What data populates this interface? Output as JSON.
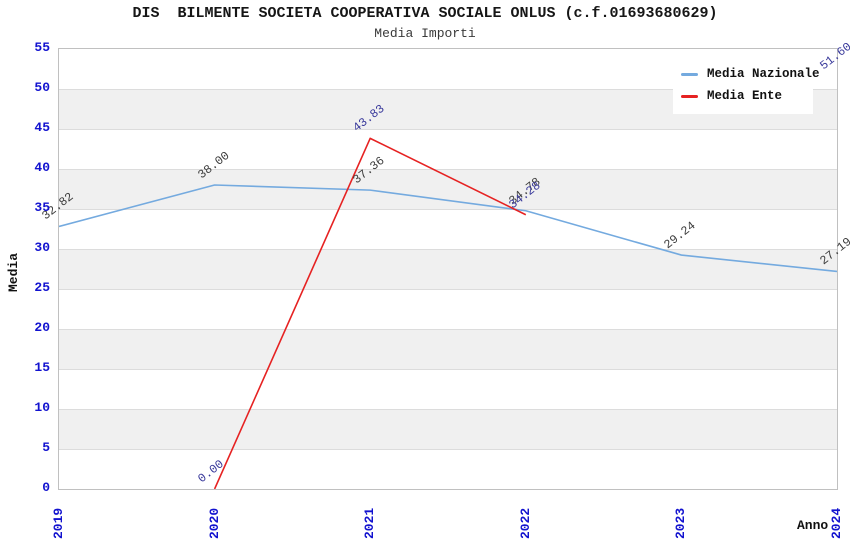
{
  "chart_data": {
    "type": "line",
    "title": "DIS  BILMENTE SOCIETA COOPERATIVA SOCIALE ONLUS (c.f.01693680629)",
    "subtitle": "Media Importi",
    "xlabel": "Anno",
    "ylabel": "Media",
    "categories": [
      "2019",
      "2020",
      "2021",
      "2022",
      "2023",
      "2024"
    ],
    "ylim": [
      0,
      55
    ],
    "ytick_step": 5,
    "yticks": [
      "0",
      "5",
      "10",
      "15",
      "20",
      "25",
      "30",
      "35",
      "40",
      "45",
      "50",
      "55"
    ],
    "grid": "horizontal gridlines every 5 units with alternating light-gray bands",
    "legend_position": "top-right",
    "colors": {
      "tick_label": "#1212cf",
      "grid_line": "#dcdcdc",
      "band_fill": "#f0f0f0",
      "plot_border": "#c0c0c0"
    },
    "series": [
      {
        "name": "Media Nazionale",
        "color": "#74aadf",
        "label_color": "#3c3c3c",
        "values": [
          32.82,
          38.0,
          37.36,
          34.78,
          29.24,
          27.19
        ],
        "point_labels": [
          "32.82",
          "38.00",
          "37.36",
          "34.78",
          "29.24",
          "27.19"
        ]
      },
      {
        "name": "Media Ente",
        "color": "#e62222",
        "label_color": "#39399b",
        "values": [
          null,
          0.0,
          43.83,
          34.28,
          null,
          51.6
        ],
        "point_labels": [
          "",
          "0.00",
          "43.83",
          "34.28",
          "",
          "51.60"
        ]
      }
    ]
  }
}
